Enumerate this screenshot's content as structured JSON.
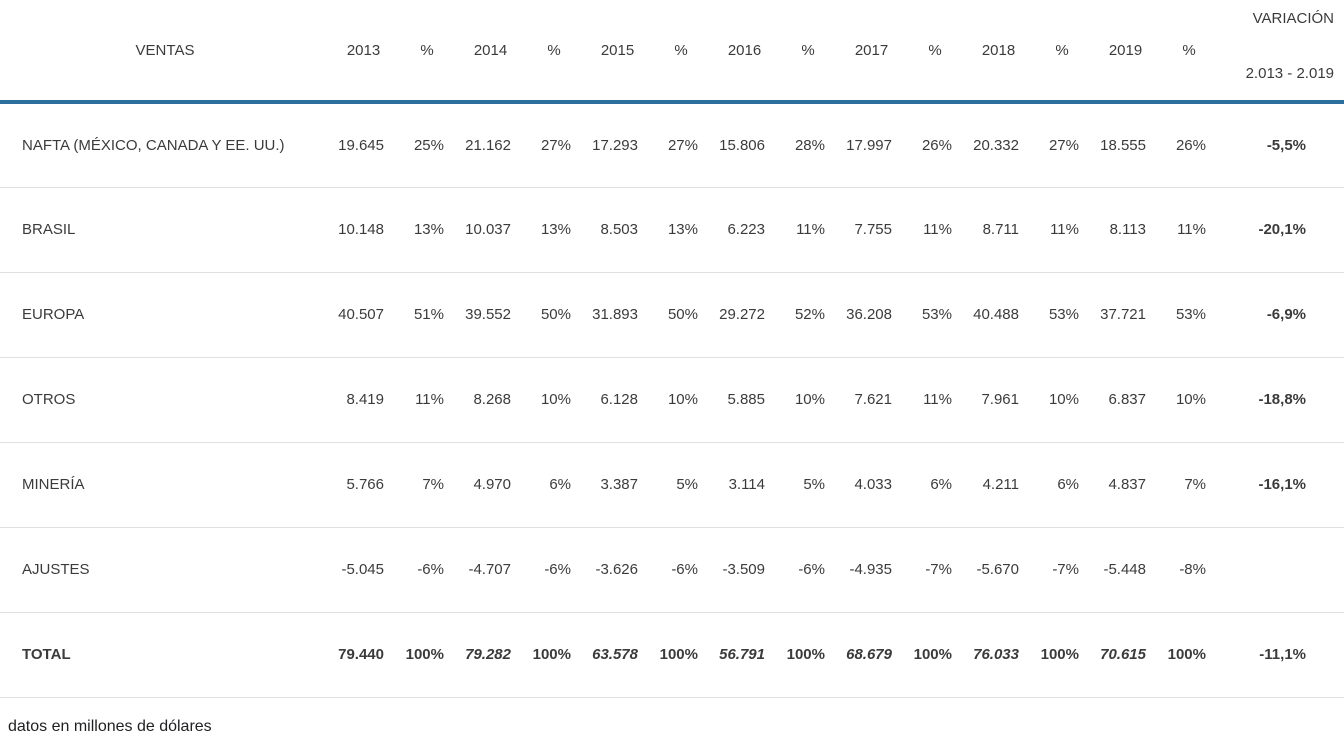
{
  "colors": {
    "accent_line": "#2c6f9e",
    "row_divider": "#e0e0e0",
    "text": "#3b3b3b"
  },
  "table": {
    "header": {
      "col0": "VENTAS",
      "pct_label": "%",
      "years": [
        "2013",
        "2014",
        "2015",
        "2016",
        "2017",
        "2018",
        "2019"
      ],
      "variation": {
        "line1": "VARIACIÓN",
        "line2": "2.013 - 2.019"
      }
    },
    "rows": [
      {
        "label": "NAFTA (MÉXICO, CANADA Y EE. UU.)",
        "values": [
          "19.645",
          "25%",
          "21.162",
          "27%",
          "17.293",
          "27%",
          "15.806",
          "28%",
          "17.997",
          "26%",
          "20.332",
          "27%",
          "18.555",
          "26%"
        ],
        "variation": "-5,5%",
        "style": "normal"
      },
      {
        "label": "BRASIL",
        "values": [
          "10.148",
          "13%",
          "10.037",
          "13%",
          "8.503",
          "13%",
          "6.223",
          "11%",
          "7.755",
          "11%",
          "8.711",
          "11%",
          "8.113",
          "11%"
        ],
        "variation": "-20,1%",
        "style": "normal"
      },
      {
        "label": "EUROPA",
        "values": [
          "40.507",
          "51%",
          "39.552",
          "50%",
          "31.893",
          "50%",
          "29.272",
          "52%",
          "36.208",
          "53%",
          "40.488",
          "53%",
          "37.721",
          "53%"
        ],
        "variation": "-6,9%",
        "style": "normal"
      },
      {
        "label": "OTROS",
        "values": [
          "8.419",
          "11%",
          "8.268",
          "10%",
          "6.128",
          "10%",
          "5.885",
          "10%",
          "7.621",
          "11%",
          "7.961",
          "10%",
          "6.837",
          "10%"
        ],
        "variation": "-18,8%",
        "style": "normal"
      },
      {
        "label": "MINERÍA",
        "values": [
          "5.766",
          "7%",
          "4.970",
          "6%",
          "3.387",
          "5%",
          "3.114",
          "5%",
          "4.033",
          "6%",
          "4.211",
          "6%",
          "4.837",
          "7%"
        ],
        "variation": "-16,1%",
        "style": "normal"
      },
      {
        "label": "AJUSTES",
        "values": [
          "-5.045",
          "-6%",
          "-4.707",
          "-6%",
          "-3.626",
          "-6%",
          "-3.509",
          "-6%",
          "-4.935",
          "-7%",
          "-5.670",
          "-7%",
          "-5.448",
          "-8%"
        ],
        "variation": "",
        "style": "normal"
      },
      {
        "label": "TOTAL",
        "values": [
          "79.440",
          "100%",
          "79.282",
          "100%",
          "63.578",
          "100%",
          "56.791",
          "100%",
          "68.679",
          "100%",
          "76.033",
          "100%",
          "70.615",
          "100%"
        ],
        "variation": "-11,1%",
        "style": "total"
      }
    ],
    "footnote": "datos en millones de dólares"
  },
  "chart_data": {
    "type": "table",
    "title": "VENTAS",
    "unit_note": "datos en millones de dólares",
    "columns": [
      "VENTAS",
      "2013",
      "%",
      "2014",
      "%",
      "2015",
      "%",
      "2016",
      "%",
      "2017",
      "%",
      "2018",
      "%",
      "2019",
      "%",
      "VARIACIÓN 2.013 - 2.019"
    ],
    "rows": [
      [
        "NAFTA (MÉXICO, CANADA Y EE. UU.)",
        "19.645",
        "25%",
        "21.162",
        "27%",
        "17.293",
        "27%",
        "15.806",
        "28%",
        "17.997",
        "26%",
        "20.332",
        "27%",
        "18.555",
        "26%",
        "-5,5%"
      ],
      [
        "BRASIL",
        "10.148",
        "13%",
        "10.037",
        "13%",
        "8.503",
        "13%",
        "6.223",
        "11%",
        "7.755",
        "11%",
        "8.711",
        "11%",
        "8.113",
        "11%",
        "-20,1%"
      ],
      [
        "EUROPA",
        "40.507",
        "51%",
        "39.552",
        "50%",
        "31.893",
        "50%",
        "29.272",
        "52%",
        "36.208",
        "53%",
        "40.488",
        "53%",
        "37.721",
        "53%",
        "-6,9%"
      ],
      [
        "OTROS",
        "8.419",
        "11%",
        "8.268",
        "10%",
        "6.128",
        "10%",
        "5.885",
        "10%",
        "7.621",
        "11%",
        "7.961",
        "10%",
        "6.837",
        "10%",
        "-18,8%"
      ],
      [
        "MINERÍA",
        "5.766",
        "7%",
        "4.970",
        "6%",
        "3.387",
        "5%",
        "3.114",
        "5%",
        "4.033",
        "6%",
        "4.211",
        "6%",
        "4.837",
        "7%",
        "-16,1%"
      ],
      [
        "AJUSTES",
        "-5.045",
        "-6%",
        "-4.707",
        "-6%",
        "-3.626",
        "-6%",
        "-3.509",
        "-6%",
        "-4.935",
        "-7%",
        "-5.670",
        "-7%",
        "-5.448",
        "-8%",
        ""
      ],
      [
        "TOTAL",
        "79.440",
        "100%",
        "79.282",
        "100%",
        "63.578",
        "100%",
        "56.791",
        "100%",
        "68.679",
        "100%",
        "76.033",
        "100%",
        "70.615",
        "100%",
        "-11,1%"
      ]
    ]
  }
}
